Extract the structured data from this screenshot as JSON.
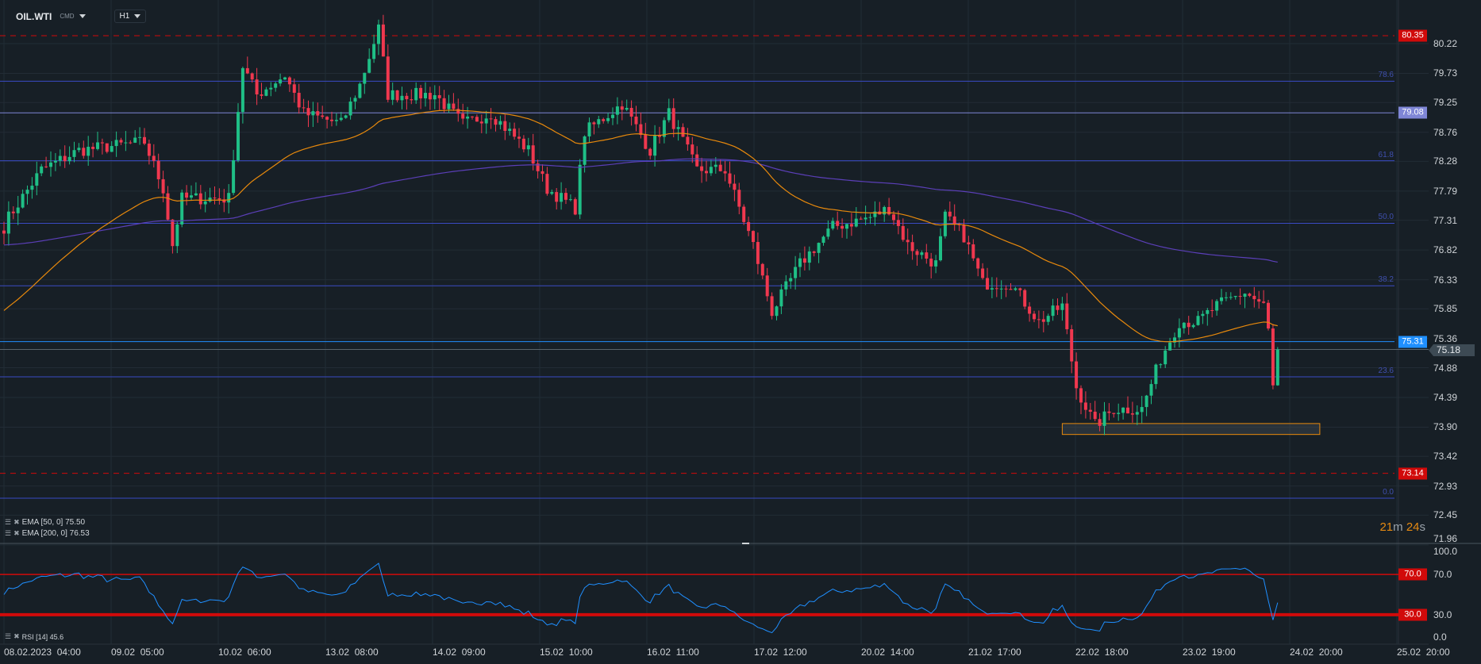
{
  "header": {
    "symbol": "OIL.WTI",
    "market": "CMD",
    "timeframe": "H1"
  },
  "colors": {
    "bull": "#1fbf86",
    "bear": "#f0384f",
    "ema50": "#e8890c",
    "ema200": "#5b3fb8",
    "fib": "#3a4bc4",
    "alert": "#d10a0a",
    "blue_line": "#1f8fff",
    "rsi": "#1f8fff"
  },
  "price_axis": [
    "80.22",
    "79.73",
    "79.25",
    "78.76",
    "78.28",
    "77.79",
    "77.31",
    "76.82",
    "76.33",
    "75.85",
    "75.36",
    "74.88",
    "74.39",
    "73.90",
    "73.42",
    "72.93",
    "72.45",
    "71.96"
  ],
  "price_tags": [
    {
      "label": "80.35",
      "price": 80.35,
      "color": "#d10a0a",
      "style": "dashed"
    },
    {
      "label": "79.08",
      "price": 79.08,
      "color": "#7f86d6",
      "style": "solid"
    },
    {
      "label": "75.31",
      "price": 75.31,
      "color": "#1f8fff",
      "style": "solid"
    },
    {
      "label": "73.14",
      "price": 73.14,
      "color": "#d10a0a",
      "style": "dashed"
    }
  ],
  "current_price": {
    "label": "75.18",
    "price": 75.18
  },
  "fib_levels": [
    {
      "label": "78.6",
      "price": 79.6
    },
    {
      "label": "61.8",
      "price": 78.29
    },
    {
      "label": "50.0",
      "price": 77.26
    },
    {
      "label": "38.2",
      "price": 76.23
    },
    {
      "label": "23.6",
      "price": 74.73
    },
    {
      "label": "0.0",
      "price": 72.73
    }
  ],
  "zone": {
    "from_bar": 226,
    "to_bar": 281,
    "price_top": 73.96,
    "price_bottom": 73.78
  },
  "indicators": [
    {
      "label": "EMA [50,  0] 75.50"
    },
    {
      "label": "EMA [200,  0] 76.53"
    }
  ],
  "countdown": {
    "minutes": "21",
    "m": "m",
    "seconds": "24",
    "s": "s"
  },
  "rsi": {
    "label": "RSI [14] 45.6",
    "axis": [
      "100.0",
      "70.0",
      "30.0",
      "0.0"
    ],
    "levels": [
      {
        "label": "70.0",
        "value": 70
      },
      {
        "label": "30.0",
        "value": 30
      }
    ]
  },
  "time_axis": [
    "08.02.2023  04:00",
    "09.02  05:00",
    "10.02  06:00",
    "13.02  08:00",
    "14.02  09:00",
    "15.02  10:00",
    "16.02  11:00",
    "17.02  12:00",
    "20.02  14:00",
    "21.02  17:00",
    "22.02  18:00",
    "23.02  19:00",
    "24.02  20:00",
    "25.02  20:00"
  ],
  "price_path": [
    [
      0,
      77.2
    ],
    [
      1,
      77.36
    ],
    [
      8,
      78.14
    ],
    [
      16,
      78.46
    ],
    [
      30,
      78.6
    ],
    [
      34,
      77.83
    ],
    [
      36,
      76.9
    ],
    [
      38,
      77.67
    ],
    [
      48,
      77.67
    ],
    [
      51,
      79.85
    ],
    [
      54,
      79.38
    ],
    [
      60,
      79.7
    ],
    [
      64,
      79.07
    ],
    [
      72,
      78.9
    ],
    [
      76,
      79.54
    ],
    [
      80,
      80.47
    ],
    [
      82,
      79.38
    ],
    [
      92,
      79.38
    ],
    [
      98,
      78.9
    ],
    [
      104,
      79.07
    ],
    [
      112,
      78.46
    ],
    [
      116,
      77.83
    ],
    [
      122,
      77.51
    ],
    [
      124,
      78.76
    ],
    [
      132,
      79.23
    ],
    [
      138,
      78.46
    ],
    [
      142,
      79.07
    ],
    [
      148,
      78.14
    ],
    [
      154,
      78.14
    ],
    [
      160,
      76.9
    ],
    [
      164,
      75.8
    ],
    [
      170,
      76.59
    ],
    [
      177,
      77.2
    ],
    [
      185,
      77.36
    ],
    [
      189,
      77.51
    ],
    [
      193,
      76.9
    ],
    [
      199,
      76.59
    ],
    [
      201,
      77.36
    ],
    [
      205,
      77.05
    ],
    [
      209,
      76.27
    ],
    [
      215,
      76.27
    ],
    [
      221,
      75.64
    ],
    [
      226,
      75.9
    ],
    [
      229,
      74.56
    ],
    [
      233,
      73.93
    ],
    [
      237,
      74.2
    ],
    [
      243,
      74.2
    ],
    [
      247,
      75.03
    ],
    [
      251,
      75.64
    ],
    [
      255,
      75.64
    ],
    [
      259,
      75.9
    ],
    [
      265,
      76.12
    ],
    [
      269,
      75.9
    ],
    [
      270,
      75.49
    ],
    [
      271,
      74.56
    ],
    [
      272,
      75.18
    ]
  ],
  "ema_start": {
    "ema50": 75.77,
    "ema200": 76.9
  }
}
